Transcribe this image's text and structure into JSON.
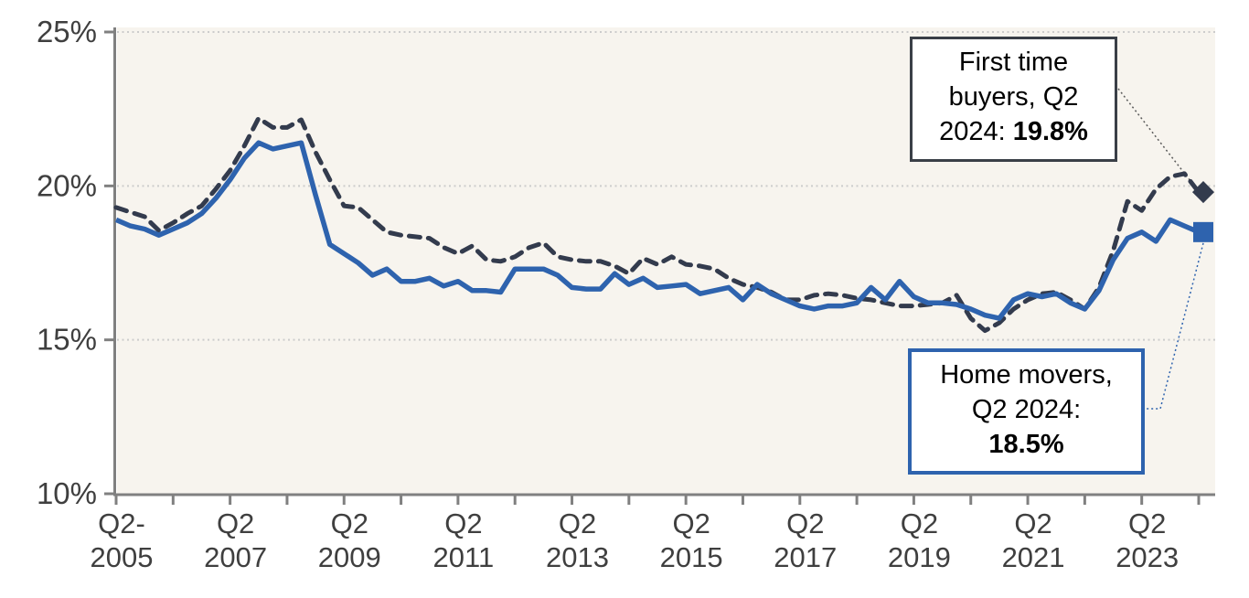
{
  "chart_data": {
    "type": "line",
    "title": "",
    "xlabel": "",
    "ylabel": "",
    "ylim": [
      10,
      25
    ],
    "grid": "horizontal-dotted",
    "legend_position": "none (annotated callout boxes)",
    "x_quarters": [
      "Q2 2005",
      "Q3 2005",
      "Q4 2005",
      "Q1 2006",
      "Q2 2006",
      "Q3 2006",
      "Q4 2006",
      "Q1 2007",
      "Q2 2007",
      "Q3 2007",
      "Q4 2007",
      "Q1 2008",
      "Q2 2008",
      "Q3 2008",
      "Q4 2008",
      "Q1 2009",
      "Q2 2009",
      "Q3 2009",
      "Q4 2009",
      "Q1 2010",
      "Q2 2010",
      "Q3 2010",
      "Q4 2010",
      "Q1 2011",
      "Q2 2011",
      "Q3 2011",
      "Q4 2011",
      "Q1 2012",
      "Q2 2012",
      "Q3 2012",
      "Q4 2012",
      "Q1 2013",
      "Q2 2013",
      "Q3 2013",
      "Q4 2013",
      "Q1 2014",
      "Q2 2014",
      "Q3 2014",
      "Q4 2014",
      "Q1 2015",
      "Q2 2015",
      "Q3 2015",
      "Q4 2015",
      "Q1 2016",
      "Q2 2016",
      "Q3 2016",
      "Q4 2016",
      "Q1 2017",
      "Q2 2017",
      "Q3 2017",
      "Q4 2017",
      "Q1 2018",
      "Q2 2018",
      "Q3 2018",
      "Q4 2018",
      "Q1 2019",
      "Q2 2019",
      "Q3 2019",
      "Q4 2019",
      "Q1 2020",
      "Q2 2020",
      "Q3 2020",
      "Q4 2020",
      "Q1 2021",
      "Q2 2021",
      "Q3 2021",
      "Q4 2021",
      "Q1 2022",
      "Q2 2022",
      "Q3 2022",
      "Q4 2022",
      "Q1 2023",
      "Q2 2023",
      "Q3 2023",
      "Q4 2023",
      "Q1 2024",
      "Q2 2024"
    ],
    "series": [
      {
        "name": "First time buyers",
        "style": "dashed",
        "color": "#333b4d",
        "end_marker": "diamond",
        "values": [
          19.3,
          19.15,
          19.0,
          18.55,
          18.8,
          19.1,
          19.35,
          19.9,
          20.5,
          21.3,
          22.2,
          21.9,
          21.9,
          22.15,
          21.1,
          20.2,
          19.35,
          19.3,
          18.9,
          18.5,
          18.4,
          18.35,
          18.3,
          18.0,
          17.8,
          18.05,
          17.6,
          17.55,
          17.7,
          18.0,
          18.15,
          17.7,
          17.6,
          17.55,
          17.55,
          17.4,
          17.15,
          17.65,
          17.45,
          17.7,
          17.45,
          17.4,
          17.3,
          17.0,
          16.8,
          16.7,
          16.55,
          16.3,
          16.3,
          16.45,
          16.5,
          16.45,
          16.35,
          16.3,
          16.2,
          16.1,
          16.1,
          16.15,
          16.2,
          16.45,
          15.7,
          15.3,
          15.55,
          16.0,
          16.3,
          16.5,
          16.55,
          16.3,
          16.0,
          16.7,
          17.9,
          19.5,
          19.2,
          19.9,
          20.3,
          20.4,
          19.8
        ]
      },
      {
        "name": "Home movers",
        "style": "solid",
        "color": "#2e63ae",
        "end_marker": "square",
        "values": [
          18.9,
          18.7,
          18.6,
          18.4,
          18.6,
          18.8,
          19.1,
          19.6,
          20.2,
          20.9,
          21.4,
          21.2,
          21.3,
          21.4,
          19.7,
          18.1,
          17.8,
          17.5,
          17.1,
          17.3,
          16.9,
          16.9,
          17.0,
          16.75,
          16.9,
          16.6,
          16.6,
          16.55,
          17.3,
          17.3,
          17.3,
          17.1,
          16.7,
          16.65,
          16.65,
          17.15,
          16.8,
          17.0,
          16.7,
          16.75,
          16.8,
          16.5,
          16.6,
          16.7,
          16.3,
          16.8,
          16.5,
          16.3,
          16.1,
          16.0,
          16.1,
          16.1,
          16.2,
          16.7,
          16.3,
          16.9,
          16.4,
          16.2,
          16.2,
          16.15,
          16.0,
          15.8,
          15.7,
          16.3,
          16.5,
          16.4,
          16.5,
          16.2,
          16.0,
          16.6,
          17.6,
          18.3,
          18.5,
          18.2,
          18.9,
          18.7,
          18.5
        ]
      }
    ],
    "y_ticks": [
      {
        "label": "10%",
        "value": 10
      },
      {
        "label": "15%",
        "value": 15
      },
      {
        "label": "20%",
        "value": 20
      },
      {
        "label": "25%",
        "value": 25
      }
    ],
    "x_axis_tick_years": [
      2005,
      2006,
      2007,
      2008,
      2009,
      2010,
      2011,
      2012,
      2013,
      2014,
      2015,
      2016,
      2017,
      2018,
      2019,
      2020,
      2021,
      2022,
      2023,
      2024
    ],
    "x_axis_labels": [
      {
        "line1": "Q2-",
        "line2": "2005"
      },
      {
        "line1": "Q2",
        "line2": "2007"
      },
      {
        "line1": "Q2",
        "line2": "2009"
      },
      {
        "line1": "Q2",
        "line2": "2011"
      },
      {
        "line1": "Q2",
        "line2": "2013"
      },
      {
        "line1": "Q2",
        "line2": "2015"
      },
      {
        "line1": "Q2",
        "line2": "2017"
      },
      {
        "line1": "Q2",
        "line2": "2019"
      },
      {
        "line1": "Q2",
        "line2": "2021"
      },
      {
        "line1": "Q2",
        "line2": "2023"
      }
    ],
    "colors": {
      "plot_bg": "#f7f4ee",
      "gridline": "#cccccc",
      "axis": "#808080",
      "tick_label": "#3f3f3f",
      "ftb_line": "#333b4d",
      "hm_line": "#2e63ae",
      "leader_ftb": "#5a5a5a",
      "leader_hm": "#2e63ae"
    }
  },
  "annotations": {
    "first_time_buyers": {
      "line1": "First time",
      "line2": "buyers, Q2",
      "line3_prefix": "2024: ",
      "value": "19.8%"
    },
    "home_movers": {
      "line1": "Home movers,",
      "line2": "Q2 2024:",
      "value": "18.5%"
    }
  }
}
